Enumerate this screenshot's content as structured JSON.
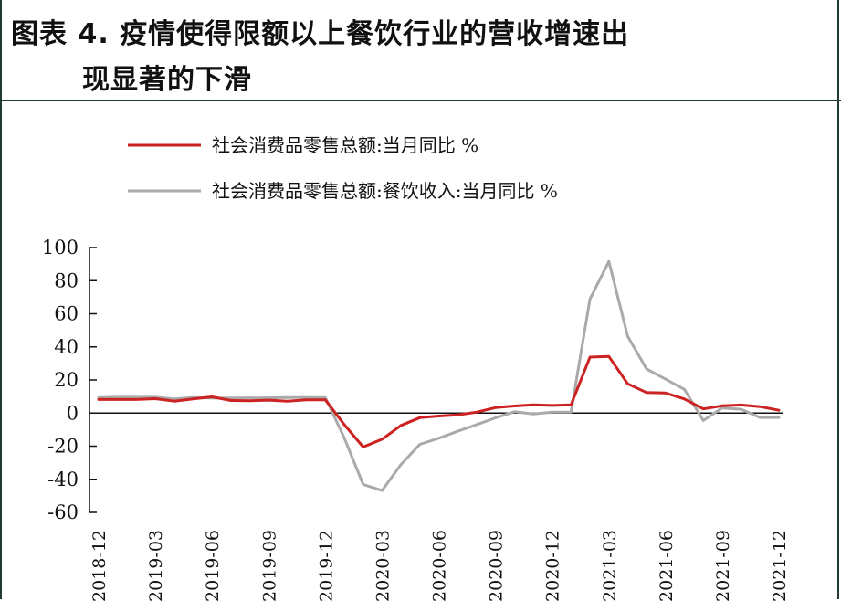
{
  "figure": {
    "title_line1": "图表 4.  疫情使得限额以上餐饮行业的营收增速出",
    "title_line2": "现显著的下滑"
  },
  "chart_data": {
    "type": "line",
    "x": [
      "2018-12",
      "2019-01",
      "2019-02",
      "2019-03",
      "2019-04",
      "2019-05",
      "2019-06",
      "2019-07",
      "2019-08",
      "2019-09",
      "2019-10",
      "2019-11",
      "2019-12",
      "2020-01",
      "2020-02",
      "2020-03",
      "2020-04",
      "2020-05",
      "2020-06",
      "2020-07",
      "2020-08",
      "2020-09",
      "2020-10",
      "2020-11",
      "2020-12",
      "2021-01",
      "2021-02",
      "2021-03",
      "2021-04",
      "2021-05",
      "2021-06",
      "2021-07",
      "2021-08",
      "2021-09",
      "2021-10",
      "2021-11",
      "2021-12"
    ],
    "series": [
      {
        "name": "社会消费品零售总额:当月同比 %",
        "color": "#cc2222",
        "values": [
          8.2,
          8.2,
          8.2,
          8.7,
          7.2,
          8.6,
          9.8,
          7.6,
          7.5,
          7.8,
          7.2,
          8.0,
          8.0,
          -7.0,
          -20.5,
          -15.8,
          -7.5,
          -2.8,
          -1.8,
          -1.1,
          0.5,
          3.3,
          4.3,
          5.0,
          4.6,
          5.0,
          33.8,
          34.2,
          17.7,
          12.4,
          12.1,
          8.5,
          2.5,
          4.4,
          4.9,
          3.9,
          1.7
        ]
      },
      {
        "name": "社会消费品零售总额:餐饮收入:当月同比 %",
        "color": "#aaaaaa",
        "values": [
          9.3,
          9.6,
          9.6,
          9.6,
          8.6,
          9.4,
          9.0,
          9.1,
          9.2,
          9.2,
          9.4,
          9.4,
          9.4,
          -15.0,
          -43.1,
          -46.8,
          -31.1,
          -18.9,
          -15.2,
          -11.0,
          -7.0,
          -2.9,
          0.8,
          -0.6,
          0.6,
          0.6,
          68.9,
          91.6,
          46.4,
          26.6,
          20.5,
          14.3,
          -4.5,
          3.1,
          2.3,
          -2.7,
          -2.7
        ]
      }
    ],
    "y_ticks": [
      100,
      80,
      60,
      40,
      20,
      0,
      -20,
      -40,
      -60
    ],
    "x_tick_labels": [
      "2018-12",
      "2019-03",
      "2019-06",
      "2019-09",
      "2019-12",
      "2020-03",
      "2020-06",
      "2020-09",
      "2020-12",
      "2021-03",
      "2021-06",
      "2021-09",
      "2021-12"
    ],
    "ylim": [
      -60,
      100
    ],
    "grid": false,
    "legend_position": "top-left",
    "xlabel": "",
    "ylabel": ""
  }
}
